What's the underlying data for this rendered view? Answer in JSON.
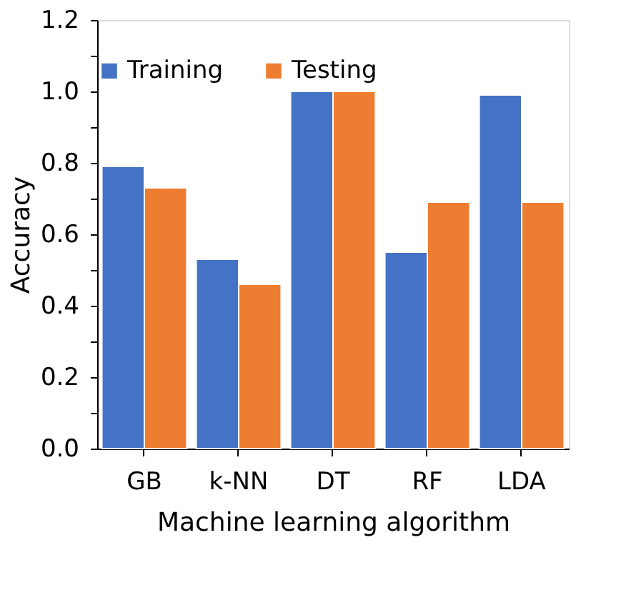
{
  "chart_data": {
    "type": "bar",
    "xlabel": "Machine learning algorithm",
    "ylabel": "Accuracy",
    "categories": [
      "GB",
      "k-NN",
      "DT",
      "RF",
      "LDA"
    ],
    "series": [
      {
        "name": "Training",
        "color": "#4472c4",
        "values": [
          0.79,
          0.53,
          1.0,
          0.55,
          0.99
        ]
      },
      {
        "name": "Testing",
        "color": "#ed7d31",
        "values": [
          0.73,
          0.46,
          1.0,
          0.69,
          0.69
        ]
      }
    ],
    "ylim": [
      0,
      1.2
    ],
    "yticks": [
      {
        "value": 0,
        "label": "0.0"
      },
      {
        "value": 0.1,
        "label": null
      },
      {
        "value": 0.2,
        "label": "0.2"
      },
      {
        "value": 0.3,
        "label": null
      },
      {
        "value": 0.4,
        "label": "0.4"
      },
      {
        "value": 0.5,
        "label": null
      },
      {
        "value": 0.6,
        "label": "0.6"
      },
      {
        "value": 0.7,
        "label": null
      },
      {
        "value": 0.8,
        "label": "0.8"
      },
      {
        "value": 0.9,
        "label": null
      },
      {
        "value": 1.0,
        "label": "1.0"
      },
      {
        "value": 1.1,
        "label": null
      },
      {
        "value": 1.2,
        "label": "1.2"
      }
    ],
    "grid": false,
    "legend": "top"
  }
}
